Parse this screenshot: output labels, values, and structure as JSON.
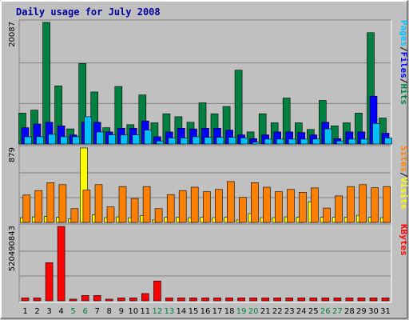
{
  "chart_data": {
    "type": "bar",
    "title": "Daily usage for July 2008",
    "days": [
      "1",
      "2",
      "3",
      "4",
      "5",
      "6",
      "7",
      "8",
      "9",
      "10",
      "11",
      "12",
      "13",
      "14",
      "15",
      "16",
      "17",
      "18",
      "19",
      "20",
      "21",
      "22",
      "23",
      "24",
      "25",
      "26",
      "27",
      "28",
      "29",
      "30",
      "31"
    ],
    "weekend_days": [
      "5",
      "6",
      "12",
      "13",
      "19",
      "20",
      "26",
      "27"
    ],
    "colors": {
      "background": "#c0c0c0",
      "plot": "#c0c0c0",
      "title": "#0000a0",
      "hits": "#008040",
      "files": "#0000ff",
      "pages": "#00c0ff",
      "visits": "#ffff00",
      "sites": "#ff8000",
      "kbytes": "#ff0000",
      "weekday_label": "#000000",
      "weekend_label": "#008040"
    },
    "panels": [
      {
        "id": "hits",
        "max_label": "20087",
        "ymax": 20087,
        "legend": [
          {
            "text": "Pages",
            "color": "#00c0ff"
          },
          {
            "text": "/",
            "color": "#000000"
          },
          {
            "text": "Files",
            "color": "#0000ff"
          },
          {
            "text": "/",
            "color": "#000000"
          },
          {
            "text": "Hits",
            "color": "#008040"
          }
        ],
        "series": [
          {
            "name": "Hits",
            "color": "#008040",
            "values": [
              5100,
              5600,
              20087,
              9600,
              2500,
              13300,
              8600,
              2700,
              9500,
              3200,
              8100,
              3500,
              5000,
              4500,
              3600,
              6800,
              5000,
              6200,
              12200,
              2000,
              5000,
              3500,
              7600,
              3500,
              2400,
              7200,
              3000,
              3500,
              5100,
              18400,
              4300
            ]
          },
          {
            "name": "Files",
            "color": "#0000ff",
            "values": [
              2700,
              3300,
              3600,
              3000,
              1500,
              3600,
              3600,
              2000,
              2600,
              2600,
              3800,
              1200,
              2000,
              2600,
              2500,
              2600,
              2600,
              2300,
              1500,
              900,
              1500,
              2000,
              2000,
              1900,
              1500,
              3600,
              900,
              2000,
              2000,
              7900,
              1800
            ]
          },
          {
            "name": "Pages",
            "color": "#00c0ff",
            "values": [
              1200,
              1200,
              1600,
              1200,
              1200,
              4500,
              2000,
              1500,
              1500,
              1500,
              2300,
              500,
              1000,
              1000,
              1200,
              1100,
              1100,
              1100,
              1000,
              300,
              800,
              800,
              800,
              800,
              800,
              2500,
              500,
              800,
              800,
              3400,
              1000
            ]
          }
        ]
      },
      {
        "id": "visits",
        "max_label": "879",
        "ymax": 879,
        "legend": [
          {
            "text": "Sites",
            "color": "#ff8000"
          },
          {
            "text": "/",
            "color": "#000000"
          },
          {
            "text": "Visits",
            "color": "#ffff00"
          }
        ],
        "series": [
          {
            "name": "Visits",
            "color": "#ffff00",
            "values": [
              56,
              65,
              70,
              60,
              40,
              879,
              90,
              56,
              65,
              56,
              80,
              28,
              60,
              60,
              56,
              60,
              56,
              60,
              28,
              104,
              56,
              56,
              65,
              60,
              244,
              60,
              60,
              60,
              84,
              60,
              56
            ]
          },
          {
            "name": "Sites",
            "color": "#ff8000",
            "values": [
              323,
              376,
              470,
              446,
              163,
              383,
              446,
              183,
              423,
              283,
              423,
              163,
              329,
              376,
              416,
              363,
              389,
              483,
              296,
              470,
              416,
              363,
              389,
              356,
              407,
              169,
              313,
              423,
              446,
              409,
              423
            ]
          }
        ]
      },
      {
        "id": "kbytes",
        "max_label": "520490843",
        "ymax": 520490843,
        "legend": [
          {
            "text": "KBytes",
            "color": "#ff0000"
          }
        ],
        "series": [
          {
            "name": "KBytes",
            "color": "#ff0000",
            "values": [
              20000000,
              20000000,
              267000000,
              520490843,
              12000000,
              37000000,
              37000000,
              12000000,
              20000000,
              20000000,
              51000000,
              139000000,
              20000000,
              20000000,
              20000000,
              20000000,
              20000000,
              20000000,
              20000000,
              20000000,
              20000000,
              20000000,
              20000000,
              20000000,
              20000000,
              20000000,
              20000000,
              20000000,
              20000000,
              20000000,
              20000000
            ]
          }
        ]
      }
    ]
  }
}
